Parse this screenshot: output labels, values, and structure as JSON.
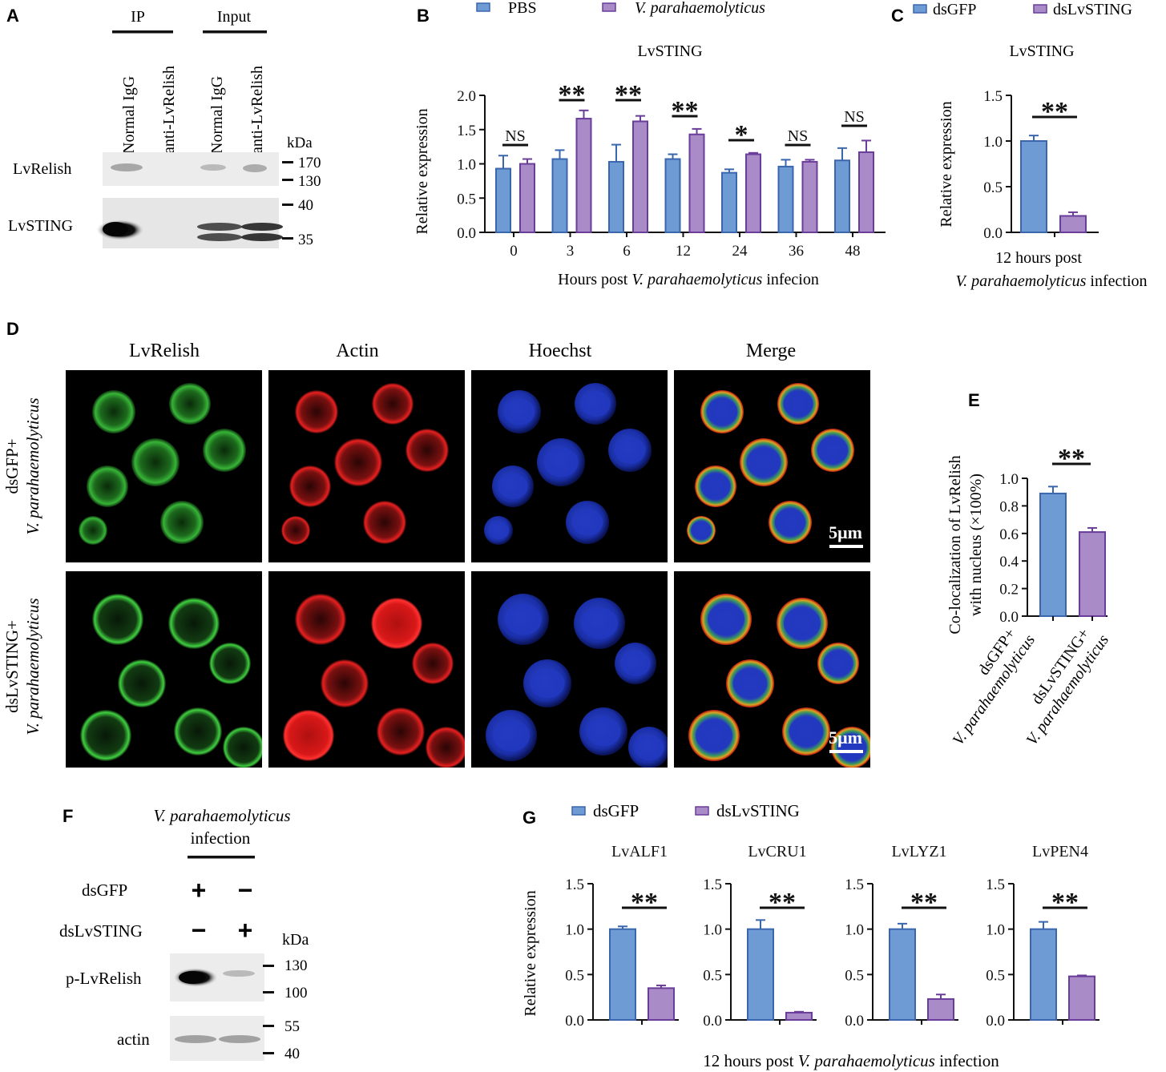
{
  "colors": {
    "blue_fill": "#6f9bd4",
    "blue_edge": "#3a66ad",
    "purple_fill": "#a88bc7",
    "purple_edge": "#6a3d9a",
    "black": "#111111"
  },
  "panels": {
    "A": {
      "letter": "A",
      "ip": "IP",
      "input": "Input",
      "lanes": [
        "Normal IgG",
        "anti-LvRelish",
        "Normal IgG",
        "anti-LvRelish"
      ],
      "kda": "kDa",
      "row1": "LvRelish",
      "row2": "LvSTING",
      "markers1": [
        "170",
        "130"
      ],
      "markers2": [
        "40",
        "35"
      ]
    },
    "B": {
      "letter": "B",
      "legend": [
        "PBS",
        "V. parahaemolyticus"
      ],
      "title": "LvSTING",
      "ylabel": "Relative expression",
      "xlabel_prefix": "Hours post ",
      "xlabel_italic": "V. parahaemolyticus",
      "xlabel_suffix": " infecion",
      "yticks": [
        "0.0",
        "0.5",
        "1.0",
        "1.5",
        "2.0"
      ],
      "sig": [
        "NS",
        "**",
        "**",
        "**",
        "*",
        "NS",
        "NS"
      ]
    },
    "C": {
      "letter": "C",
      "legend": [
        "dsGFP",
        "dsLvSTING"
      ],
      "title": "LvSTING",
      "ylabel": "Relative expression",
      "xlabel_line1": "12 hours post",
      "xlabel_line2": "V. parahaemolyticus infection",
      "yticks": [
        "0.0",
        "0.5",
        "1.0",
        "1.5"
      ],
      "sig": "**"
    },
    "D": {
      "letter": "D",
      "cols": [
        "LvRelish",
        "Actin",
        "Hoechst",
        "Merge"
      ],
      "row1_label": [
        "dsGFP+",
        "V. parahaemolyticus"
      ],
      "row2_label": [
        "dsLvSTING+",
        "V. parahaemolyticus"
      ],
      "scale": "5μm"
    },
    "E": {
      "letter": "E",
      "ylabel_line1": "Co-localization of LvRelish",
      "ylabel_line2": "with nucleus (×100%)",
      "yticks": [
        "0.0",
        "0.2",
        "0.4",
        "0.6",
        "0.8",
        "1.0"
      ],
      "xcat1": [
        "dsGFP+",
        "V. parahaemolyticus"
      ],
      "xcat2": [
        "dsLvSTING+",
        "V. parahaemolyticus"
      ],
      "sig": "**"
    },
    "F": {
      "letter": "F",
      "header_line1": "V. parahaemolyticus",
      "header_line2": "infection",
      "rows": [
        "dsGFP",
        "dsLvSTING"
      ],
      "signs": [
        [
          "+",
          "−"
        ],
        [
          "−",
          "+"
        ]
      ],
      "kda": "kDa",
      "band1": "p-LvRelish",
      "band2": "actin",
      "markers1": [
        "130",
        "100"
      ],
      "markers2": [
        "55",
        "40"
      ]
    },
    "G": {
      "letter": "G",
      "legend": [
        "dsGFP",
        "dsLvSTING"
      ],
      "ylabel": "Relative expression",
      "yticks": [
        "0.0",
        "0.5",
        "1.0",
        "1.5"
      ],
      "xlabel_prefix": "12 hours post ",
      "xlabel_italic": "V. parahaemolyticus",
      "xlabel_suffix": " infection",
      "sig": "**"
    }
  },
  "chart_data": [
    {
      "panel": "B",
      "type": "bar",
      "title": "LvSTING",
      "xlabel": "Hours post V. parahaemolyticus infecion",
      "ylabel": "Relative expression",
      "ylim": [
        0,
        2.0
      ],
      "categories": [
        "0",
        "3",
        "6",
        "12",
        "24",
        "36",
        "48"
      ],
      "series": [
        {
          "name": "PBS",
          "values": [
            0.93,
            1.07,
            1.03,
            1.07,
            0.87,
            0.96,
            1.05
          ],
          "errors": [
            0.19,
            0.13,
            0.25,
            0.07,
            0.05,
            0.1,
            0.18
          ]
        },
        {
          "name": "V. parahaemolyticus",
          "values": [
            1.0,
            1.66,
            1.62,
            1.43,
            1.14,
            1.03,
            1.17
          ],
          "errors": [
            0.07,
            0.12,
            0.08,
            0.08,
            0.02,
            0.03,
            0.17
          ]
        }
      ],
      "significance": [
        "NS",
        "**",
        "**",
        "**",
        "*",
        "NS",
        "NS"
      ],
      "legend": "top"
    },
    {
      "panel": "C",
      "type": "bar",
      "title": "LvSTING",
      "xlabel": "12 hours post V. parahaemolyticus infection",
      "ylabel": "Relative expression",
      "ylim": [
        0,
        1.5
      ],
      "series": [
        {
          "name": "dsGFP",
          "values": [
            1.0
          ],
          "errors": [
            0.06
          ]
        },
        {
          "name": "dsLvSTING",
          "values": [
            0.18
          ],
          "errors": [
            0.04
          ]
        }
      ],
      "significance": [
        "**"
      ],
      "legend": "top"
    },
    {
      "panel": "E",
      "type": "bar",
      "ylabel": "Co-localization of LvRelish with nucleus (×100%)",
      "ylim": [
        0,
        1.0
      ],
      "categories": [
        "dsGFP+ V. parahaemolyticus",
        "dsLvSTING+ V. parahaemolyticus"
      ],
      "values": [
        0.89,
        0.61
      ],
      "errors": [
        0.05,
        0.03
      ],
      "significance": [
        "**"
      ]
    },
    {
      "panel": "G",
      "type": "bar",
      "ylabel": "Relative expression",
      "xlabel": "12 hours post V. parahaemolyticus infection",
      "ylim": [
        0,
        1.5
      ],
      "categories": [
        "LvALF1",
        "LvCRU1",
        "LvLYZ1",
        "LvPEN4"
      ],
      "series": [
        {
          "name": "dsGFP",
          "values": [
            1.0,
            1.0,
            1.0,
            1.0
          ],
          "errors": [
            0.03,
            0.1,
            0.06,
            0.08
          ]
        },
        {
          "name": "dsLvSTING",
          "values": [
            0.35,
            0.08,
            0.23,
            0.48
          ],
          "errors": [
            0.03,
            0.01,
            0.05,
            0.01
          ]
        }
      ],
      "significance": [
        "**",
        "**",
        "**",
        "**"
      ],
      "legend": "top"
    }
  ]
}
